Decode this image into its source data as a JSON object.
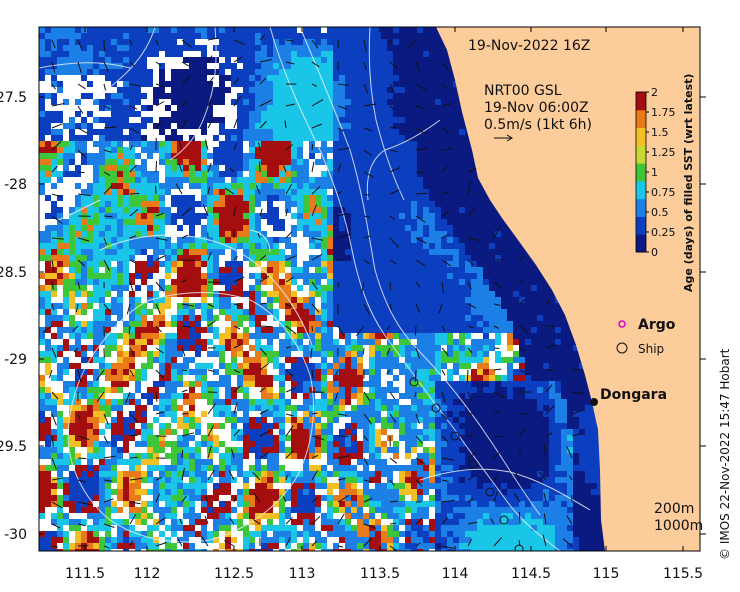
{
  "header": {
    "timestamp": "19-Nov-2022 16Z",
    "current_source": "NRT00 GSL",
    "current_time": "19-Nov 06:00Z",
    "current_scale": "0.5m/s (1kt 6h)"
  },
  "colorbar": {
    "label": "Age (days) of filled SST (wrt latest)",
    "ticks": [
      "0",
      "0.25",
      "0.5",
      "0.75",
      "1",
      "1.25",
      "1.5",
      "1.75",
      "2"
    ],
    "colors": [
      "#0a1a80",
      "#0c3fc0",
      "#1c7fe6",
      "#1ac6e8",
      "#3ec63a",
      "#c8d832",
      "#f2c024",
      "#e87a1a",
      "#a50e0e"
    ]
  },
  "legend": {
    "argo_label": "Argo",
    "ship_label": "Ship",
    "argo_color": "#d400d4"
  },
  "places": {
    "dongara": "Dongara"
  },
  "isobaths": {
    "label_200": "200m",
    "label_1000": "1000m"
  },
  "axes": {
    "x_ticks": [
      "111.5",
      "112",
      "112.5",
      "113",
      "113.5",
      "114",
      "114.5",
      "115",
      "115.5"
    ],
    "y_ticks": [
      "-27.5",
      "-28",
      "-28.5",
      "-29",
      "-29.5",
      "-30"
    ]
  },
  "colors": {
    "land": "#fccc9a",
    "no_data": "#ffffff",
    "frame": "#000000"
  },
  "credit": "© IMOS 22-Nov-2022 15:47 Hobart"
}
